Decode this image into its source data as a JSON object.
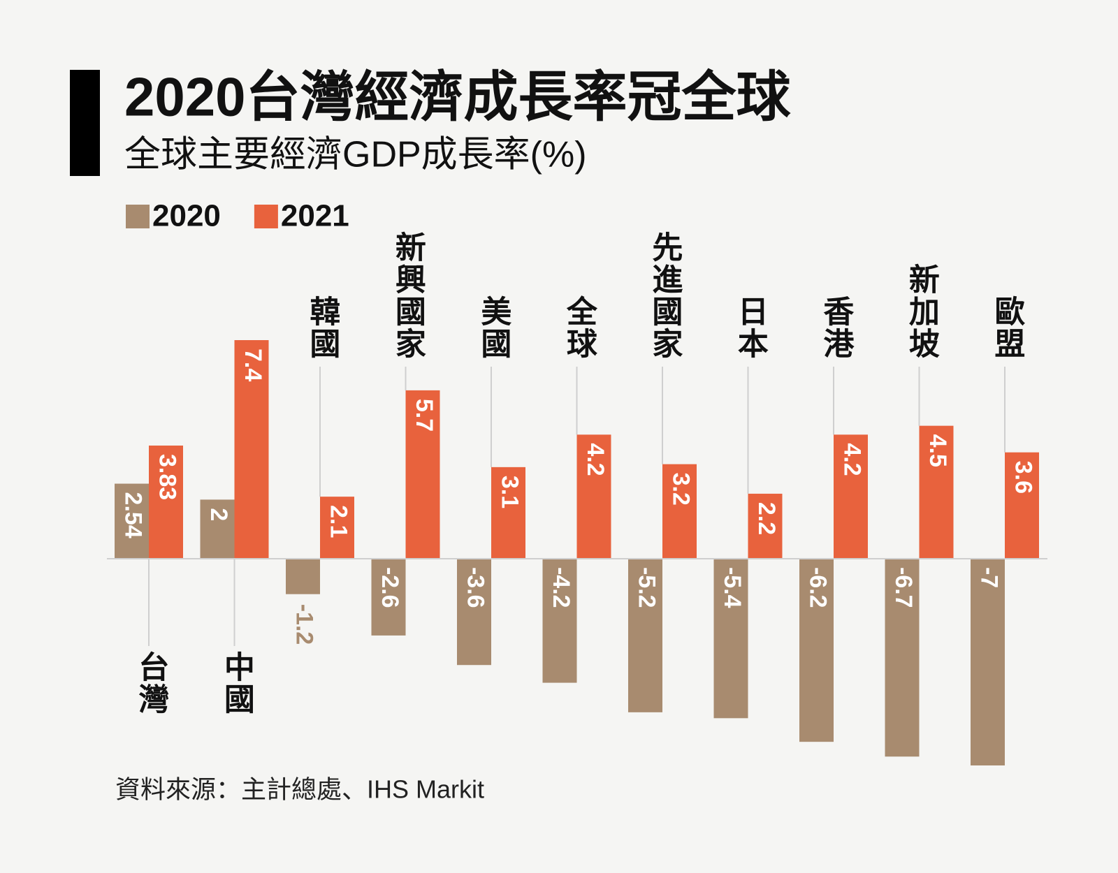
{
  "chart_data": {
    "type": "bar",
    "title": "2020台灣經濟成長率冠全球",
    "subtitle": "全球主要經濟GDP成長率(%)",
    "source": "資料來源：主計總處、IHS Markit",
    "categories": [
      "台灣",
      "中國",
      "韓國",
      "新興國家",
      "美國",
      "全球",
      "先進國家",
      "日本",
      "香港",
      "新加坡",
      "歐盟"
    ],
    "series": [
      {
        "name": "2020",
        "color": "#a88b6f",
        "values": [
          2.54,
          2,
          -1.2,
          -2.6,
          -3.6,
          -4.2,
          -5.2,
          -5.4,
          -6.2,
          -6.7,
          -7
        ]
      },
      {
        "name": "2021",
        "color": "#e8623d",
        "values": [
          3.83,
          7.4,
          2.1,
          5.7,
          3.1,
          4.2,
          3.2,
          2.2,
          4.2,
          4.5,
          3.6
        ]
      }
    ]
  }
}
